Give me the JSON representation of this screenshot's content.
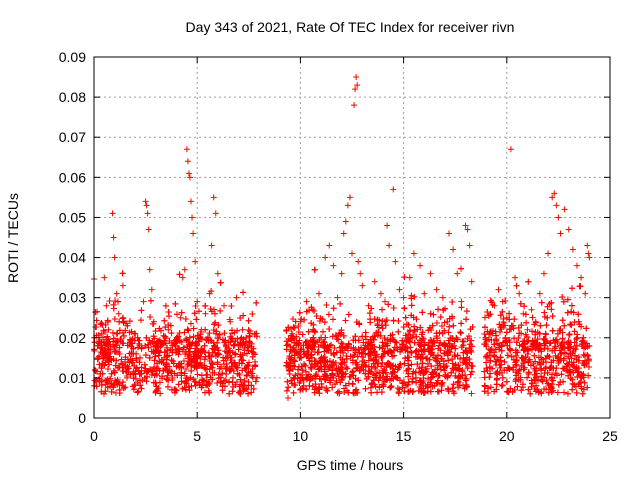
{
  "chart_data": {
    "type": "scatter",
    "title": "Day 343 of 2021, Rate Of TEC Index for receiver rivn",
    "xlabel": "GPS time / hours",
    "ylabel": "ROTI / TECUs",
    "xlim": [
      0,
      25
    ],
    "ylim": [
      0,
      0.09
    ],
    "xticks": [
      0,
      5,
      10,
      15,
      20,
      25
    ],
    "xtick_labels": [
      "0",
      "5",
      "10",
      "15",
      "20",
      "25"
    ],
    "yticks": [
      0,
      0.01,
      0.02,
      0.03,
      0.04,
      0.05,
      0.06,
      0.07,
      0.08,
      0.09
    ],
    "ytick_labels": [
      "0",
      "0.01",
      "0.02",
      "0.03",
      "0.04",
      "0.05",
      "0.06",
      "0.07",
      "0.08",
      "0.09"
    ],
    "grid": true,
    "marker": "+",
    "color": "#ff0000",
    "data_gaps_hours": [
      [
        7.9,
        9.3
      ],
      [
        18.4,
        18.9
      ]
    ],
    "series": [
      {
        "name": "ROTI",
        "points": [
          [
            0.05,
            0.012
          ],
          [
            0.1,
            0.009
          ],
          [
            0.2,
            0.015
          ],
          [
            0.3,
            0.011
          ],
          [
            0.35,
            0.021
          ],
          [
            0.4,
            0.013
          ],
          [
            0.5,
            0.035
          ],
          [
            0.6,
            0.028
          ],
          [
            0.7,
            0.022
          ],
          [
            0.8,
            0.017
          ],
          [
            0.9,
            0.051
          ],
          [
            0.95,
            0.045
          ],
          [
            1.0,
            0.04
          ],
          [
            1.1,
            0.031
          ],
          [
            1.2,
            0.026
          ],
          [
            1.3,
            0.019
          ],
          [
            1.4,
            0.033
          ],
          [
            1.5,
            0.014
          ],
          [
            1.6,
            0.01
          ],
          [
            1.8,
            0.016
          ],
          [
            2.0,
            0.021
          ],
          [
            2.2,
            0.018
          ],
          [
            2.4,
            0.029
          ],
          [
            2.5,
            0.054
          ],
          [
            2.55,
            0.053
          ],
          [
            2.6,
            0.051
          ],
          [
            2.65,
            0.047
          ],
          [
            2.7,
            0.037
          ],
          [
            2.8,
            0.032
          ],
          [
            2.9,
            0.024
          ],
          [
            3.0,
            0.011
          ],
          [
            3.2,
            0.019
          ],
          [
            3.4,
            0.015
          ],
          [
            3.6,
            0.022
          ],
          [
            3.8,
            0.017
          ],
          [
            4.0,
            0.02
          ],
          [
            4.2,
            0.025
          ],
          [
            4.3,
            0.035
          ],
          [
            4.4,
            0.037
          ],
          [
            4.5,
            0.067
          ],
          [
            4.55,
            0.064
          ],
          [
            4.6,
            0.061
          ],
          [
            4.65,
            0.06
          ],
          [
            4.7,
            0.054
          ],
          [
            4.75,
            0.05
          ],
          [
            4.8,
            0.046
          ],
          [
            4.9,
            0.039
          ],
          [
            5.0,
            0.029
          ],
          [
            5.2,
            0.022
          ],
          [
            5.4,
            0.026
          ],
          [
            5.6,
            0.031
          ],
          [
            5.7,
            0.043
          ],
          [
            5.8,
            0.055
          ],
          [
            5.9,
            0.051
          ],
          [
            6.0,
            0.036
          ],
          [
            6.3,
            0.028
          ],
          [
            6.6,
            0.024
          ],
          [
            6.9,
            0.03
          ],
          [
            7.2,
            0.022
          ],
          [
            7.5,
            0.018
          ],
          [
            7.8,
            0.014
          ],
          [
            9.4,
            0.005
          ],
          [
            9.6,
            0.021
          ],
          [
            9.8,
            0.018
          ],
          [
            10.0,
            0.024
          ],
          [
            10.3,
            0.029
          ],
          [
            10.6,
            0.027
          ],
          [
            10.9,
            0.031
          ],
          [
            11.2,
            0.04
          ],
          [
            11.4,
            0.043
          ],
          [
            11.6,
            0.038
          ],
          [
            11.8,
            0.03
          ],
          [
            12.0,
            0.036
          ],
          [
            12.1,
            0.046
          ],
          [
            12.2,
            0.049
          ],
          [
            12.3,
            0.053
          ],
          [
            12.4,
            0.055
          ],
          [
            12.5,
            0.041
          ],
          [
            12.6,
            0.078
          ],
          [
            12.65,
            0.082
          ],
          [
            12.7,
            0.085
          ],
          [
            12.75,
            0.083
          ],
          [
            12.8,
            0.039
          ],
          [
            12.9,
            0.036
          ],
          [
            13.0,
            0.033
          ],
          [
            13.3,
            0.028
          ],
          [
            13.6,
            0.034
          ],
          [
            13.9,
            0.031
          ],
          [
            14.1,
            0.029
          ],
          [
            14.2,
            0.048
          ],
          [
            14.3,
            0.043
          ],
          [
            14.5,
            0.057
          ],
          [
            14.6,
            0.039
          ],
          [
            14.8,
            0.032
          ],
          [
            15.0,
            0.03
          ],
          [
            15.3,
            0.035
          ],
          [
            15.5,
            0.041
          ],
          [
            15.8,
            0.038
          ],
          [
            16.0,
            0.031
          ],
          [
            16.3,
            0.036
          ],
          [
            16.6,
            0.032
          ],
          [
            16.9,
            0.03
          ],
          [
            17.2,
            0.046
          ],
          [
            17.4,
            0.042
          ],
          [
            17.6,
            0.036
          ],
          [
            17.8,
            0.029
          ],
          [
            18.0,
            0.048
          ],
          [
            18.1,
            0.047
          ],
          [
            18.2,
            0.043
          ],
          [
            18.3,
            0.034
          ],
          [
            19.0,
            0.015
          ],
          [
            19.2,
            0.021
          ],
          [
            19.4,
            0.028
          ],
          [
            19.6,
            0.032
          ],
          [
            19.8,
            0.029
          ],
          [
            20.0,
            0.025
          ],
          [
            20.2,
            0.067
          ],
          [
            20.4,
            0.035
          ],
          [
            20.6,
            0.031
          ],
          [
            20.8,
            0.026
          ],
          [
            21.0,
            0.022
          ],
          [
            21.2,
            0.027
          ],
          [
            21.4,
            0.024
          ],
          [
            21.6,
            0.031
          ],
          [
            21.8,
            0.036
          ],
          [
            22.0,
            0.041
          ],
          [
            22.2,
            0.055
          ],
          [
            22.3,
            0.056
          ],
          [
            22.4,
            0.053
          ],
          [
            22.5,
            0.05
          ],
          [
            22.6,
            0.046
          ],
          [
            22.8,
            0.052
          ],
          [
            23.0,
            0.047
          ],
          [
            23.2,
            0.042
          ],
          [
            23.4,
            0.038
          ],
          [
            23.6,
            0.035
          ],
          [
            23.8,
            0.031
          ],
          [
            23.9,
            0.043
          ],
          [
            23.95,
            0.041
          ],
          [
            24.0,
            0.04
          ]
        ]
      }
    ]
  }
}
